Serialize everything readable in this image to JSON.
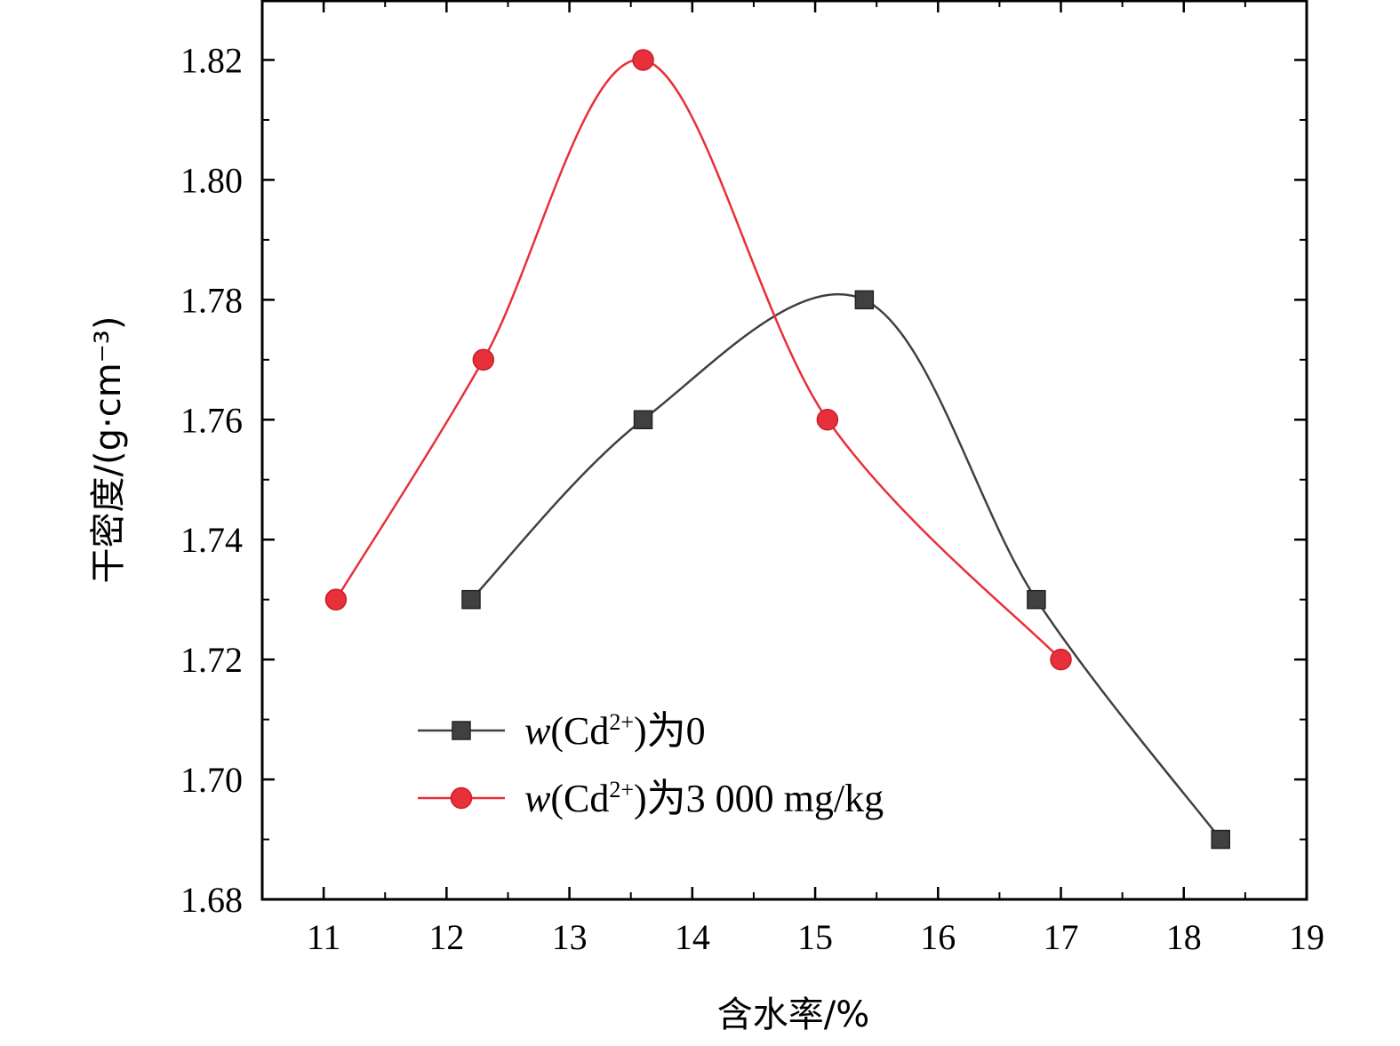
{
  "chart_data": {
    "type": "line",
    "title": "",
    "xlabel": "含水率/%",
    "ylabel": "干密度/(g·cm⁻³)",
    "xlim": [
      10.5,
      19
    ],
    "ylim": [
      1.68,
      1.83
    ],
    "x_ticks": [
      "11",
      "12",
      "13",
      "14",
      "15",
      "16",
      "17",
      "18",
      "19"
    ],
    "y_ticks": [
      "1.68",
      "1.70",
      "1.72",
      "1.74",
      "1.76",
      "1.78",
      "1.80",
      "1.82"
    ],
    "legend_position": "lower-left",
    "series": [
      {
        "name": "w(Cd²⁺)为0",
        "legend": {
          "var": "w",
          "pre": "(Cd",
          "sup": "2+",
          "post": ")为0"
        },
        "color": "#404040",
        "marker": "square",
        "points": [
          {
            "x": 12.2,
            "y": 1.73
          },
          {
            "x": 13.6,
            "y": 1.76
          },
          {
            "x": 15.4,
            "y": 1.78
          },
          {
            "x": 16.8,
            "y": 1.73
          },
          {
            "x": 18.3,
            "y": 1.69
          }
        ]
      },
      {
        "name": "w(Cd²⁺)为3 000 mg/kg",
        "legend": {
          "var": "w",
          "pre": "(Cd",
          "sup": "2+",
          "post": ")为3 000 mg/kg"
        },
        "color": "#e8303a",
        "marker": "circle",
        "points": [
          {
            "x": 11.1,
            "y": 1.73
          },
          {
            "x": 12.3,
            "y": 1.77
          },
          {
            "x": 13.6,
            "y": 1.82
          },
          {
            "x": 15.1,
            "y": 1.76
          },
          {
            "x": 17.0,
            "y": 1.72
          }
        ]
      }
    ]
  }
}
